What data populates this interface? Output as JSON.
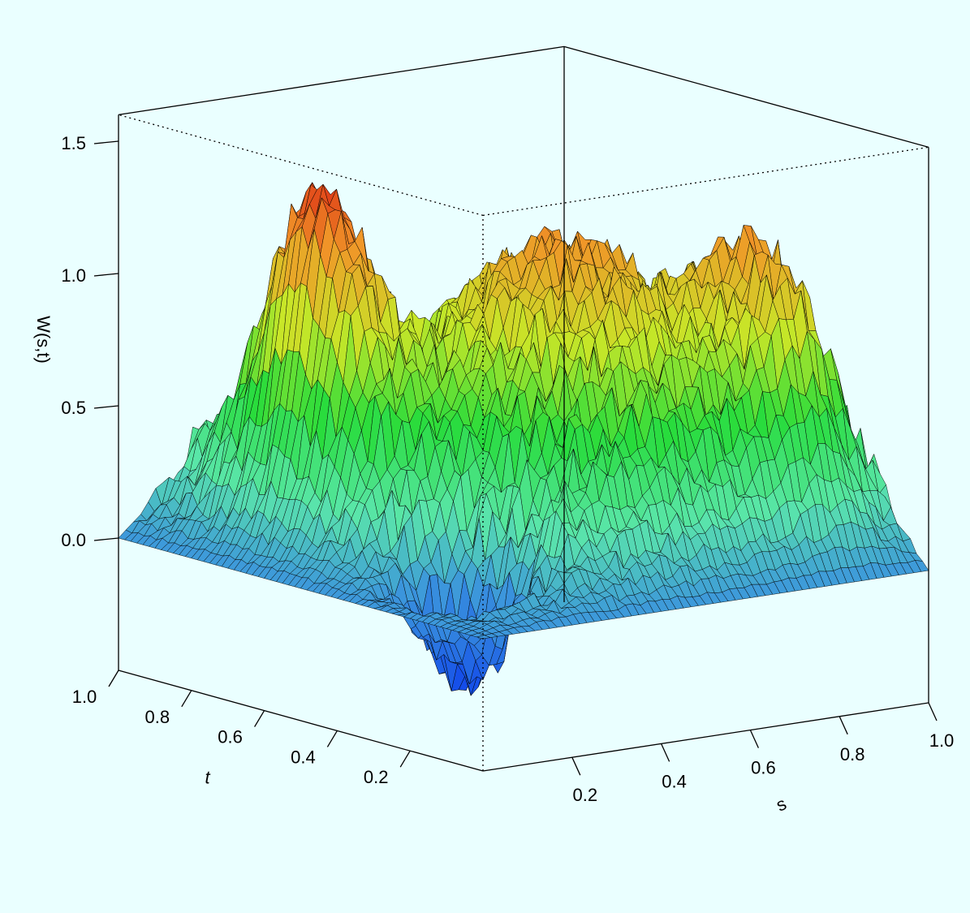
{
  "chart_data": {
    "type": "surface",
    "xlabel": "s",
    "ylabel": "t",
    "zlabel": "W(s,t)",
    "xticks": [
      0.2,
      0.4,
      0.6,
      0.8,
      1.0
    ],
    "yticks": [
      0.2,
      0.4,
      0.6,
      0.8,
      1.0
    ],
    "zticks": [
      0.0,
      0.5,
      1.0,
      1.5
    ],
    "xtick_labels": [
      "0.2",
      "0.4",
      "0.6",
      "0.8",
      "1.0"
    ],
    "ytick_labels": [
      "0.2",
      "0.4",
      "0.6",
      "0.8",
      "1.0"
    ],
    "ztick_labels": [
      "0.0",
      "0.5",
      "1.0",
      "1.5"
    ],
    "xlim": [
      0,
      1
    ],
    "ylim": [
      0,
      1
    ],
    "zlim": [
      -0.5,
      1.6
    ],
    "colormap": "rainbow (blue = low, red = high)",
    "peaks": [
      {
        "s": 0.2,
        "t": 0.7,
        "W": 1.58
      },
      {
        "s": 0.85,
        "t": 0.25,
        "W": 1.3
      }
    ],
    "trough": {
      "s": 0.15,
      "t": 0.25,
      "W": -0.45
    }
  }
}
